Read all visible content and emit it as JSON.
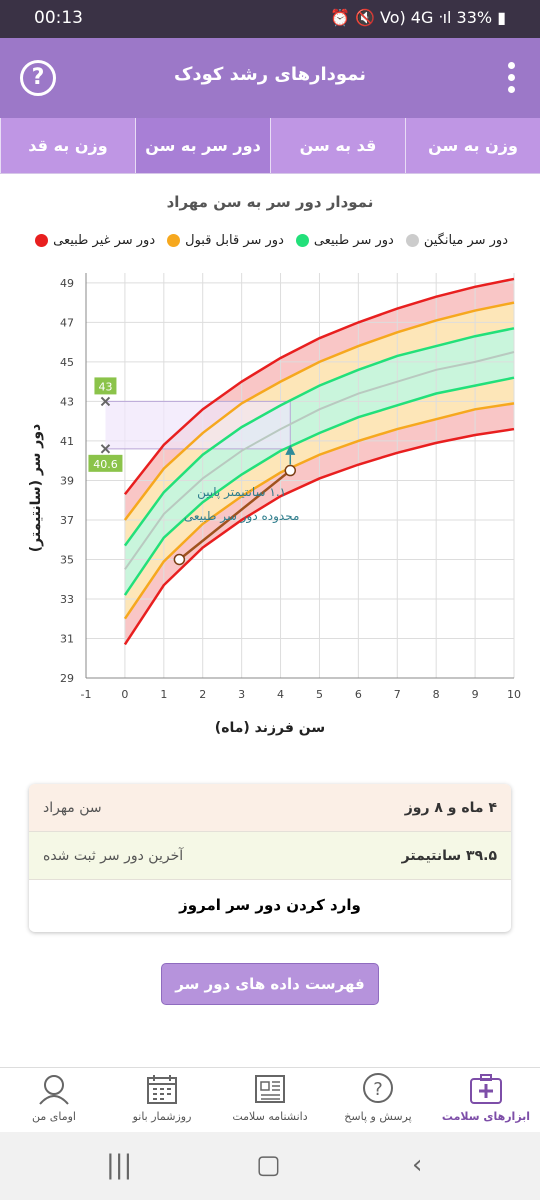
{
  "status": {
    "time": "00:13",
    "right": "⏰ 🔇 Vo) 4G ᐧıl 33% ▮"
  },
  "app": {
    "title": "نمودارهای رشد کودک",
    "help_label": "?"
  },
  "tabs": [
    {
      "label": "وزن به سن",
      "active": false
    },
    {
      "label": "قد به سن",
      "active": false
    },
    {
      "label": "دور سر به سن",
      "active": true
    },
    {
      "label": "وزن به قد",
      "active": false
    }
  ],
  "chart_title": "نمودار دور سر به سن مهراد",
  "legend": [
    {
      "label": "دور سر غیر طبیعی",
      "color": "#e81f1f"
    },
    {
      "label": "دور سر قابل قبول",
      "color": "#f6a81e"
    },
    {
      "label": "دور سر طبیعی",
      "color": "#22e07a"
    },
    {
      "label": "دور سر میانگین",
      "color": "#cccccc"
    }
  ],
  "chart_data": {
    "type": "line",
    "xlabel": "سن فرزند (ماه)",
    "ylabel": "دور سر (سانتیمتر)",
    "xlim": [
      -1,
      10
    ],
    "ylim": [
      29,
      49.5
    ],
    "x_ticks": [
      -1,
      0,
      1,
      2,
      3,
      4,
      5,
      6,
      7,
      8,
      9,
      10
    ],
    "y_ticks": [
      29,
      31,
      33,
      35,
      37,
      39,
      41,
      43,
      45,
      47,
      49
    ],
    "x": [
      0,
      1,
      2,
      3,
      4,
      5,
      6,
      7,
      8,
      9,
      10
    ],
    "series": [
      {
        "name": "red-low",
        "values": [
          30.7,
          33.7,
          35.6,
          37.0,
          38.2,
          39.1,
          39.8,
          40.4,
          40.9,
          41.3,
          41.6
        ]
      },
      {
        "name": "orange-low",
        "values": [
          32.0,
          34.9,
          36.8,
          38.2,
          39.4,
          40.3,
          41.0,
          41.6,
          42.1,
          42.6,
          42.9
        ]
      },
      {
        "name": "green-low",
        "values": [
          33.2,
          36.1,
          37.9,
          39.3,
          40.5,
          41.4,
          42.2,
          42.8,
          43.4,
          43.8,
          44.2
        ]
      },
      {
        "name": "grey-mean",
        "values": [
          34.5,
          37.3,
          39.1,
          40.5,
          41.6,
          42.6,
          43.4,
          44.0,
          44.6,
          45.0,
          45.5
        ]
      },
      {
        "name": "green-high",
        "values": [
          35.7,
          38.4,
          40.3,
          41.7,
          42.8,
          43.8,
          44.6,
          45.3,
          45.8,
          46.3,
          46.7
        ]
      },
      {
        "name": "orange-high",
        "values": [
          37.0,
          39.6,
          41.4,
          42.9,
          44.0,
          45.0,
          45.8,
          46.5,
          47.1,
          47.6,
          48.0
        ]
      },
      {
        "name": "red-high",
        "values": [
          38.3,
          40.8,
          42.6,
          44.0,
          45.2,
          46.2,
          47.0,
          47.7,
          48.3,
          48.8,
          49.2
        ]
      }
    ],
    "child_points": [
      {
        "x": 1.4,
        "y": 35.0
      },
      {
        "x": 4.25,
        "y": 39.5
      }
    ],
    "marker_43": {
      "label": "43",
      "y": 43
    },
    "marker_40_6": {
      "label": "40.6",
      "y": 40.6
    },
    "target_point": {
      "x": 4.25,
      "y": 40.6
    },
    "annotation_line1": "۱.۱ سانتیمتر پایین",
    "annotation_line2": "محدوده دور سر طبیعی",
    "colors": {
      "red_fill": "#f9c6c6",
      "orange_fill": "#fde6b8",
      "green_fill": "#c9f5dc",
      "purple_fill": "#efe6fb",
      "child_line": "#a0521e"
    }
  },
  "info": {
    "age_key": "سن مهراد",
    "age_val": "۴ ماه و ۸ روز",
    "head_key": "آخرین دور سر ثبت شده",
    "head_val": "۳۹.۵ سانتیمتر",
    "enter_label": "وارد کردن دور سر امروز"
  },
  "list_button": "فهرست داده های دور سر مهراد",
  "bottom_nav": [
    {
      "label": "ابزارهای سلامت",
      "icon": "health-kit-icon",
      "active": true
    },
    {
      "label": "پرسش و پاسخ",
      "icon": "question-icon",
      "active": false
    },
    {
      "label": "دانشنامه سلامت",
      "icon": "newspaper-icon",
      "active": false
    },
    {
      "label": "روزشمار بانو",
      "icon": "calendar-icon",
      "active": false
    },
    {
      "label": "اومای من",
      "icon": "profile-icon",
      "active": false
    }
  ]
}
